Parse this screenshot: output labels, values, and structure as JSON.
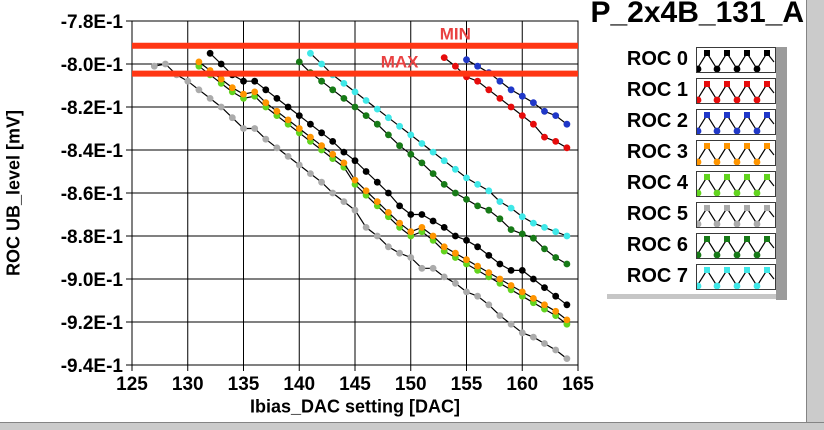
{
  "header": {
    "title": "P_2x4B_131_A"
  },
  "chart_data": {
    "type": "line",
    "title": "P_2x4B_131_A",
    "xlabel": "Ibias_DAC setting [DAC]",
    "ylabel": "ROC UB_level [mV]",
    "xlim": [
      125,
      165
    ],
    "ylim": [
      -0.94,
      -0.78
    ],
    "grid": true,
    "grid_color": "#000000",
    "legend_position": "right",
    "x_ticks": [
      {
        "value": 125,
        "label": "125"
      },
      {
        "value": 130,
        "label": "130"
      },
      {
        "value": 135,
        "label": "135"
      },
      {
        "value": 140,
        "label": "140"
      },
      {
        "value": 145,
        "label": "145"
      },
      {
        "value": 150,
        "label": "150"
      },
      {
        "value": 155,
        "label": "155"
      },
      {
        "value": 160,
        "label": "160"
      },
      {
        "value": 165,
        "label": "165"
      }
    ],
    "y_ticks": [
      {
        "value": -0.78,
        "label": "-7.8E-1"
      },
      {
        "value": -0.8,
        "label": "-8.0E-1"
      },
      {
        "value": -0.82,
        "label": "-8.2E-1"
      },
      {
        "value": -0.84,
        "label": "-8.4E-1"
      },
      {
        "value": -0.86,
        "label": "-8.6E-1"
      },
      {
        "value": -0.88,
        "label": "-8.8E-1"
      },
      {
        "value": -0.9,
        "label": "-9.0E-1"
      },
      {
        "value": -0.92,
        "label": "-9.2E-1"
      },
      {
        "value": -0.94,
        "label": "-9.4E-1"
      }
    ],
    "limit_lines": {
      "line_color": "#ff3614",
      "label_color": "#e94141",
      "line_width": 6,
      "min": {
        "label": "MIN",
        "value": -0.7915,
        "label_anchor_x": 154
      },
      "max": {
        "label": "MAX",
        "value": -0.8045,
        "label_anchor_x": 149
      }
    },
    "line_color": "#000000",
    "series": [
      {
        "name": "ROC 0",
        "color": "#000000",
        "x_start": 132,
        "x_step": 1,
        "values": [
          -0.795,
          -0.8,
          -0.805,
          -0.808,
          -0.808,
          -0.812,
          -0.816,
          -0.82,
          -0.824,
          -0.828,
          -0.832,
          -0.836,
          -0.841,
          -0.845,
          -0.85,
          -0.855,
          -0.86,
          -0.866,
          -0.87,
          -0.87,
          -0.873,
          -0.876,
          -0.88,
          -0.882,
          -0.885,
          -0.889,
          -0.893,
          -0.896,
          -0.896,
          -0.9,
          -0.904,
          -0.908,
          -0.912
        ]
      },
      {
        "name": "ROC 1",
        "color": "#e60c0c",
        "x_start": 153,
        "x_step": 1,
        "values": [
          -0.797,
          -0.801,
          -0.806,
          -0.808,
          -0.812,
          -0.816,
          -0.82,
          -0.824,
          -0.828,
          -0.834,
          -0.836,
          -0.839
        ]
      },
      {
        "name": "ROC 2",
        "color": "#2038c8",
        "x_start": 155,
        "x_step": 1,
        "values": [
          -0.798,
          -0.801,
          -0.804,
          -0.808,
          -0.812,
          -0.815,
          -0.818,
          -0.822,
          -0.824,
          -0.828
        ]
      },
      {
        "name": "ROC 3",
        "color": "#ff9500",
        "x_start": 131,
        "x_step": 1,
        "values": [
          -0.799,
          -0.803,
          -0.807,
          -0.811,
          -0.814,
          -0.813,
          -0.818,
          -0.822,
          -0.826,
          -0.83,
          -0.834,
          -0.838,
          -0.842,
          -0.846,
          -0.854,
          -0.859,
          -0.864,
          -0.869,
          -0.874,
          -0.878,
          -0.876,
          -0.88,
          -0.885,
          -0.888,
          -0.891,
          -0.894,
          -0.897,
          -0.9,
          -0.903,
          -0.906,
          -0.909,
          -0.912,
          -0.915,
          -0.919
        ]
      },
      {
        "name": "ROC 4",
        "color": "#62d41e",
        "x_start": 131,
        "x_step": 1,
        "values": [
          -0.801,
          -0.805,
          -0.809,
          -0.813,
          -0.816,
          -0.815,
          -0.82,
          -0.824,
          -0.828,
          -0.832,
          -0.836,
          -0.84,
          -0.844,
          -0.848,
          -0.856,
          -0.861,
          -0.866,
          -0.871,
          -0.876,
          -0.88,
          -0.878,
          -0.882,
          -0.887,
          -0.89,
          -0.893,
          -0.896,
          -0.899,
          -0.902,
          -0.905,
          -0.908,
          -0.911,
          -0.914,
          -0.917,
          -0.921
        ]
      },
      {
        "name": "ROC 5",
        "color": "#ababab",
        "x_start": 127,
        "x_step": 1,
        "values": [
          -0.801,
          -0.8,
          -0.805,
          -0.808,
          -0.812,
          -0.816,
          -0.82,
          -0.825,
          -0.83,
          -0.83,
          -0.835,
          -0.839,
          -0.843,
          -0.847,
          -0.851,
          -0.855,
          -0.86,
          -0.864,
          -0.868,
          -0.876,
          -0.88,
          -0.885,
          -0.888,
          -0.89,
          -0.895,
          -0.895,
          -0.899,
          -0.902,
          -0.906,
          -0.908,
          -0.912,
          -0.917,
          -0.921,
          -0.925,
          -0.927,
          -0.93,
          -0.933,
          -0.937
        ]
      },
      {
        "name": "ROC 6",
        "color": "#177a17",
        "x_start": 140,
        "x_step": 1,
        "values": [
          -0.799,
          -0.804,
          -0.808,
          -0.812,
          -0.816,
          -0.82,
          -0.824,
          -0.828,
          -0.833,
          -0.838,
          -0.842,
          -0.846,
          -0.851,
          -0.856,
          -0.86,
          -0.863,
          -0.866,
          -0.868,
          -0.872,
          -0.877,
          -0.879,
          -0.881,
          -0.886,
          -0.89,
          -0.893
        ]
      },
      {
        "name": "ROC 7",
        "color": "#3fe8e8",
        "x_start": 141,
        "x_step": 1,
        "values": [
          -0.795,
          -0.8,
          -0.805,
          -0.809,
          -0.813,
          -0.817,
          -0.821,
          -0.825,
          -0.829,
          -0.833,
          -0.837,
          -0.841,
          -0.845,
          -0.849,
          -0.853,
          -0.856,
          -0.859,
          -0.864,
          -0.867,
          -0.871,
          -0.874,
          -0.876,
          -0.878,
          -0.88
        ]
      }
    ]
  },
  "legend": {
    "title_hint": "plot-legend"
  }
}
